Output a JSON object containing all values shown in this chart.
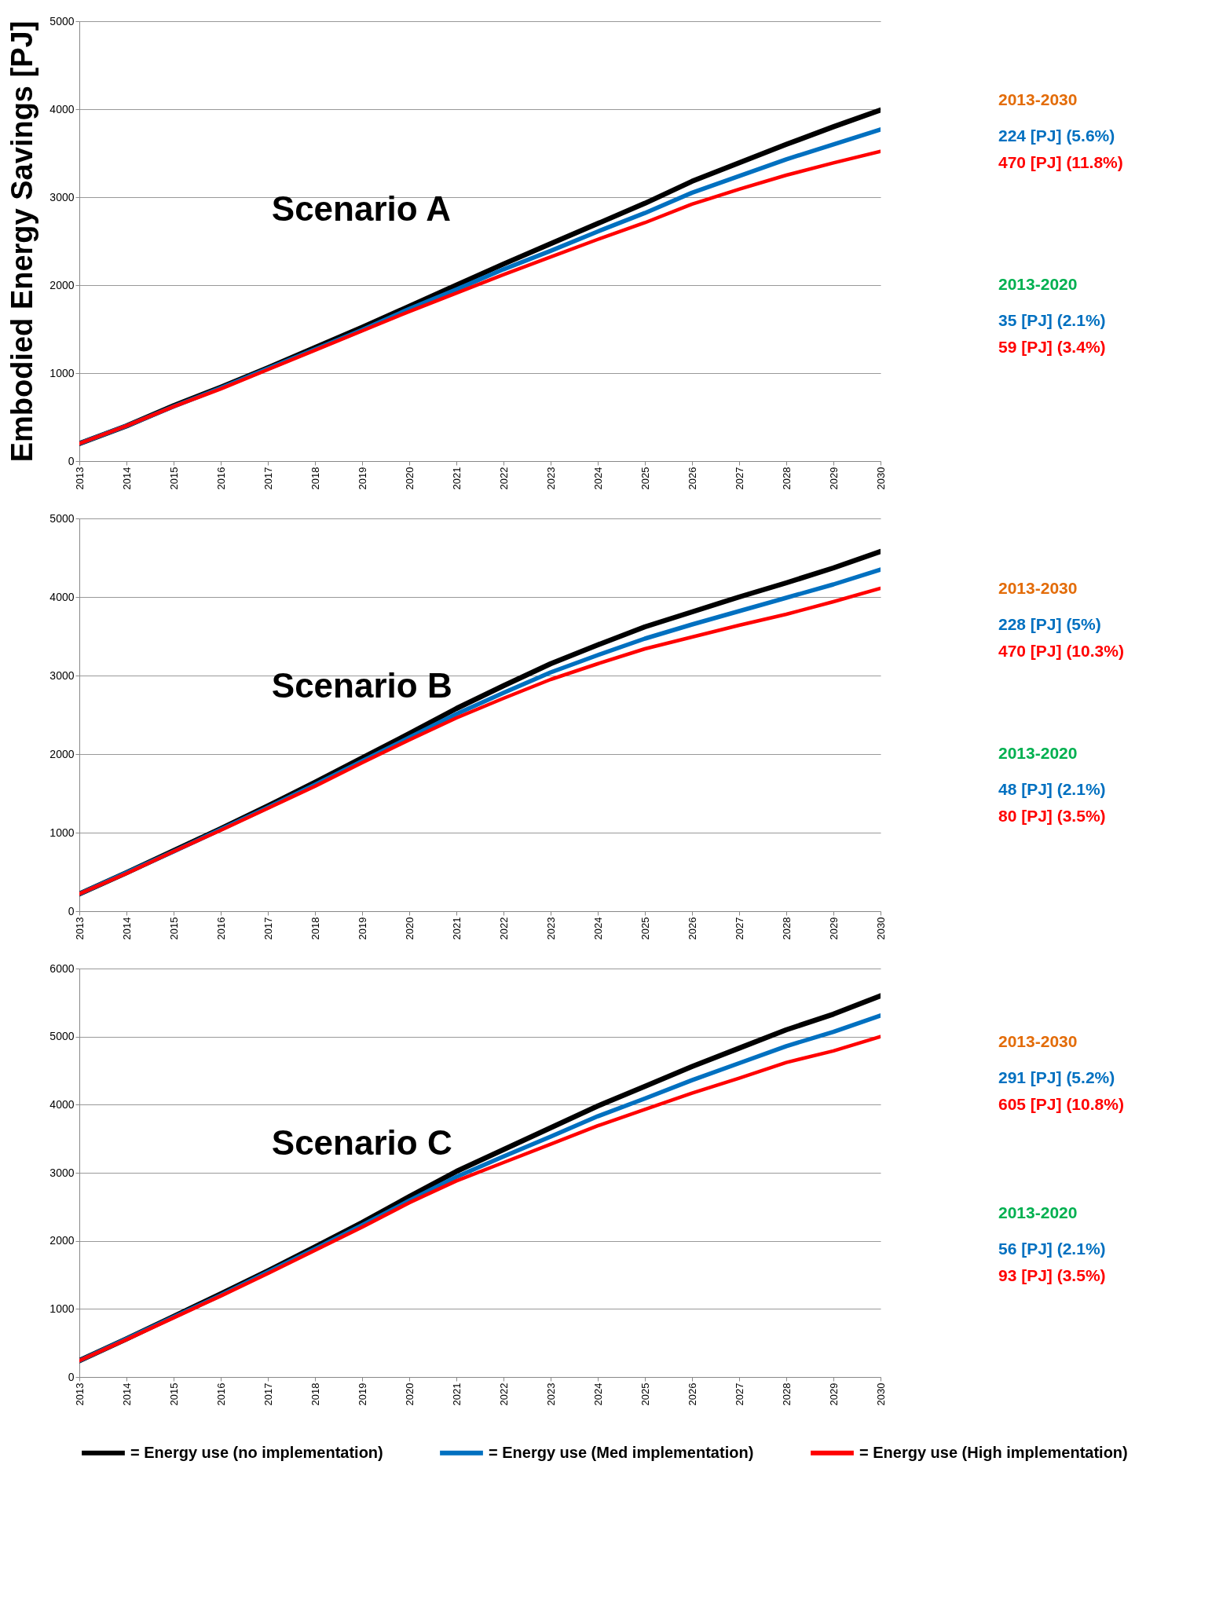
{
  "chart_data": [
    {
      "type": "line",
      "title": "Scenario A",
      "ylabel": "Embodied Energy Savings [PJ]",
      "x": [
        2013,
        2014,
        2015,
        2016,
        2017,
        2018,
        2019,
        2020,
        2021,
        2022,
        2023,
        2024,
        2025,
        2026,
        2027,
        2028,
        2029,
        2030
      ],
      "xlim": [
        2013,
        2030
      ],
      "xticks": [
        2013,
        2014,
        2015,
        2016,
        2017,
        2018,
        2019,
        2020,
        2021,
        2022,
        2023,
        2024,
        2025,
        2026,
        2027,
        2028,
        2029,
        2030
      ],
      "ylim": [
        0,
        5000
      ],
      "yticks": [
        0,
        1000,
        2000,
        3000,
        4000,
        5000
      ],
      "grid": "y",
      "marker": "none",
      "line_style": "solid",
      "legend": "bottom",
      "series": [
        {
          "name": "= Energy use (no implementation)",
          "color": "#000000",
          "values": [
            200,
            400,
            630,
            840,
            1060,
            1290,
            1520,
            1760,
            2000,
            2240,
            2470,
            2700,
            2930,
            3180,
            3390,
            3600,
            3800,
            3990
          ]
        },
        {
          "name": "= Energy use (Med implementation)",
          "color": "#0070c0",
          "values": [
            200,
            400,
            620,
            830,
            1050,
            1270,
            1490,
            1730,
            1950,
            2180,
            2390,
            2610,
            2820,
            3050,
            3240,
            3430,
            3600,
            3770
          ]
        },
        {
          "name": "= Energy use (High implementation)",
          "color": "#ff0000",
          "values": [
            200,
            400,
            620,
            820,
            1040,
            1260,
            1480,
            1700,
            1910,
            2120,
            2320,
            2520,
            2710,
            2920,
            3090,
            3250,
            3390,
            3520
          ]
        }
      ],
      "annotations": [
        "2013-2030",
        "224 [PJ] (5.6%)",
        "470 [PJ] (11.8%)",
        "2013-2020",
        "35 [PJ] (2.1%)",
        "59 [PJ]  (3.4%)"
      ]
    },
    {
      "type": "line",
      "title": "Scenario B",
      "x": [
        2013,
        2014,
        2015,
        2016,
        2017,
        2018,
        2019,
        2020,
        2021,
        2022,
        2023,
        2024,
        2025,
        2026,
        2027,
        2028,
        2029,
        2030
      ],
      "xlim": [
        2013,
        2030
      ],
      "xticks": [
        2013,
        2014,
        2015,
        2016,
        2017,
        2018,
        2019,
        2020,
        2021,
        2022,
        2023,
        2024,
        2025,
        2026,
        2027,
        2028,
        2029,
        2030
      ],
      "ylim": [
        0,
        5000
      ],
      "yticks": [
        0,
        1000,
        2000,
        3000,
        4000,
        5000
      ],
      "grid": "y",
      "marker": "none",
      "line_style": "solid",
      "legend": "bottom",
      "series": [
        {
          "name": "= Energy use (no implementation)",
          "color": "#000000",
          "values": [
            220,
            490,
            770,
            1050,
            1340,
            1640,
            1950,
            2260,
            2580,
            2870,
            3150,
            3390,
            3620,
            3810,
            4000,
            4180,
            4370,
            4580
          ]
        },
        {
          "name": "= Energy use (Med implementation)",
          "color": "#0070c0",
          "values": [
            220,
            490,
            760,
            1040,
            1320,
            1610,
            1910,
            2210,
            2510,
            2780,
            3040,
            3260,
            3470,
            3650,
            3820,
            3990,
            4160,
            4350
          ]
        },
        {
          "name": "= Energy use (High implementation)",
          "color": "#ff0000",
          "values": [
            220,
            480,
            760,
            1030,
            1310,
            1590,
            1890,
            2180,
            2460,
            2710,
            2950,
            3150,
            3340,
            3490,
            3640,
            3780,
            3940,
            4110
          ]
        }
      ],
      "annotations": [
        "2013-2030",
        "228 [PJ] (5%)",
        "470 [PJ] (10.3%)",
        "2013-2020",
        "48 [PJ] (2.1%)",
        "80 [PJ] (3.5%)"
      ]
    },
    {
      "type": "line",
      "title": "Scenario C",
      "x": [
        2013,
        2014,
        2015,
        2016,
        2017,
        2018,
        2019,
        2020,
        2021,
        2022,
        2023,
        2024,
        2025,
        2026,
        2027,
        2028,
        2029,
        2030
      ],
      "xlim": [
        2013,
        2030
      ],
      "xticks": [
        2013,
        2014,
        2015,
        2016,
        2017,
        2018,
        2019,
        2020,
        2021,
        2022,
        2023,
        2024,
        2025,
        2026,
        2027,
        2028,
        2029,
        2030
      ],
      "ylim": [
        0,
        6000
      ],
      "yticks": [
        0,
        1000,
        2000,
        3000,
        4000,
        5000,
        6000
      ],
      "grid": "y",
      "marker": "none",
      "line_style": "solid",
      "legend": "bottom",
      "series": [
        {
          "name": "= Energy use (no implementation)",
          "color": "#000000",
          "values": [
            240,
            560,
            890,
            1220,
            1560,
            1910,
            2270,
            2650,
            3020,
            3340,
            3660,
            3980,
            4270,
            4560,
            4830,
            5100,
            5330,
            5600
          ]
        },
        {
          "name": "= Energy use (Med implementation)",
          "color": "#0070c0",
          "values": [
            240,
            560,
            880,
            1200,
            1540,
            1880,
            2230,
            2590,
            2940,
            3240,
            3530,
            3830,
            4090,
            4360,
            4610,
            4860,
            5070,
            5310
          ]
        },
        {
          "name": "= Energy use (High implementation)",
          "color": "#ff0000",
          "values": [
            240,
            550,
            870,
            1190,
            1520,
            1860,
            2200,
            2560,
            2880,
            3150,
            3420,
            3690,
            3930,
            4170,
            4390,
            4620,
            4790,
            5000
          ]
        }
      ],
      "annotations": [
        "2013-2030",
        "291 [PJ] (5.2%)",
        "605 [PJ] (10.8%)",
        "2013-2020",
        "56 [PJ] (2.1%)",
        "93 [PJ] (3.5%)"
      ]
    }
  ]
}
